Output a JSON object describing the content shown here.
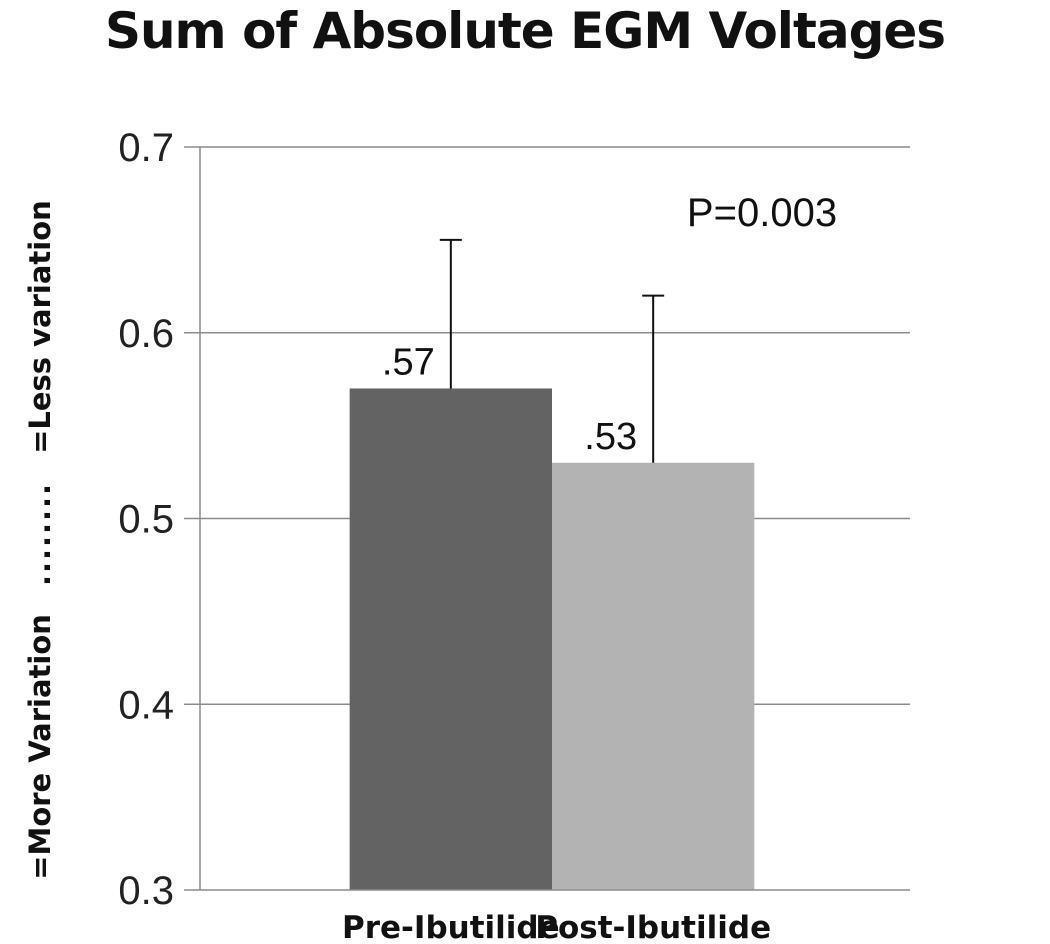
{
  "chart_data": {
    "type": "bar",
    "title": "Sum of Absolute EGM Voltages",
    "ylabel": {
      "bottom": "=More Variation",
      "middle": "........",
      "top": "=Less variation"
    },
    "categories": [
      "Pre-Ibutilide",
      "Post-Ibutilide"
    ],
    "values": [
      0.57,
      0.53
    ],
    "data_labels": [
      ".57",
      ".53"
    ],
    "error_upper": [
      0.65,
      0.62
    ],
    "bar_colors": [
      "#636363",
      "#b3b3b3"
    ],
    "ylim": [
      0.3,
      0.7
    ],
    "yticks": [
      "0.3",
      "0.4",
      "0.5",
      "0.6",
      "0.7"
    ],
    "grid": true,
    "annotation": "P=0.003"
  }
}
